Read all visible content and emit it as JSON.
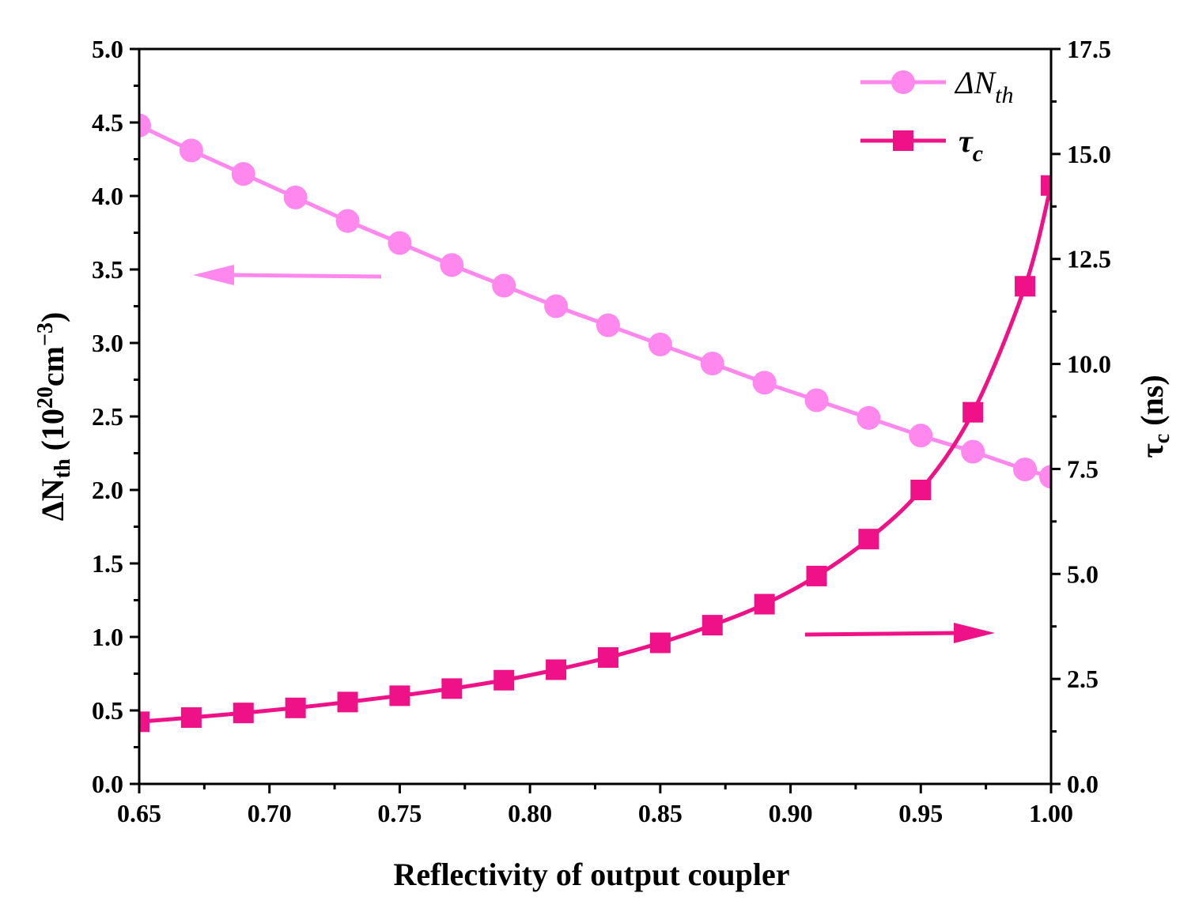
{
  "chart_data": {
    "type": "line",
    "xlabel": "Reflectivity of output coupler",
    "ylabel_left": {
      "prefix": "ΔN",
      "sub": "th",
      "mid": " (10",
      "sup1": "20",
      "mid2": "cm",
      "sup2": "−3",
      "suffix": ")"
    },
    "ylabel_right": {
      "prefix": "τ",
      "sub": "c",
      "suffix": " (ns)"
    },
    "xlim": [
      0.65,
      1.0
    ],
    "ylim_left": [
      0.0,
      5.0
    ],
    "ylim_right": [
      0.0,
      17.5
    ],
    "x_ticks": [
      "0.65",
      "0.70",
      "0.75",
      "0.80",
      "0.85",
      "0.90",
      "0.95",
      "1.00"
    ],
    "y_left_ticks": [
      "0.0",
      "0.5",
      "1.0",
      "1.5",
      "2.0",
      "2.5",
      "3.0",
      "3.5",
      "4.0",
      "4.5",
      "5.0"
    ],
    "y_right_ticks": [
      "0.0",
      "2.5",
      "5.0",
      "7.5",
      "10.0",
      "12.5",
      "15.0",
      "17.5"
    ],
    "grid": false,
    "legend_position": "top-right",
    "x": [
      0.65,
      0.67,
      0.69,
      0.71,
      0.73,
      0.75,
      0.77,
      0.79,
      0.81,
      0.83,
      0.85,
      0.87,
      0.89,
      0.91,
      0.93,
      0.95,
      0.97,
      0.99,
      1.0
    ],
    "series": [
      {
        "name": "ΔN_th",
        "legend_main": "ΔN",
        "legend_sub": "th",
        "axis": "left",
        "marker": "circle",
        "color": "#ff88ee",
        "values": [
          4.48,
          4.31,
          4.15,
          3.99,
          3.83,
          3.68,
          3.53,
          3.39,
          3.25,
          3.12,
          2.99,
          2.86,
          2.73,
          2.61,
          2.49,
          2.37,
          2.26,
          2.14,
          2.09
        ]
      },
      {
        "name": "τ_c",
        "legend_main": "τ",
        "legend_sub": "c",
        "axis": "right",
        "marker": "square",
        "color": "#ee1188",
        "values": [
          1.48,
          1.58,
          1.69,
          1.81,
          1.95,
          2.1,
          2.27,
          2.47,
          2.72,
          3.01,
          3.36,
          3.78,
          4.28,
          4.95,
          5.83,
          7.0,
          8.85,
          11.85,
          14.25
        ]
      }
    ],
    "annotations": [
      {
        "type": "arrow",
        "direction": "left",
        "points_to_axis": "left",
        "color": "#ff88ee"
      },
      {
        "type": "arrow",
        "direction": "right",
        "points_to_axis": "right",
        "color": "#ee1188"
      }
    ]
  }
}
